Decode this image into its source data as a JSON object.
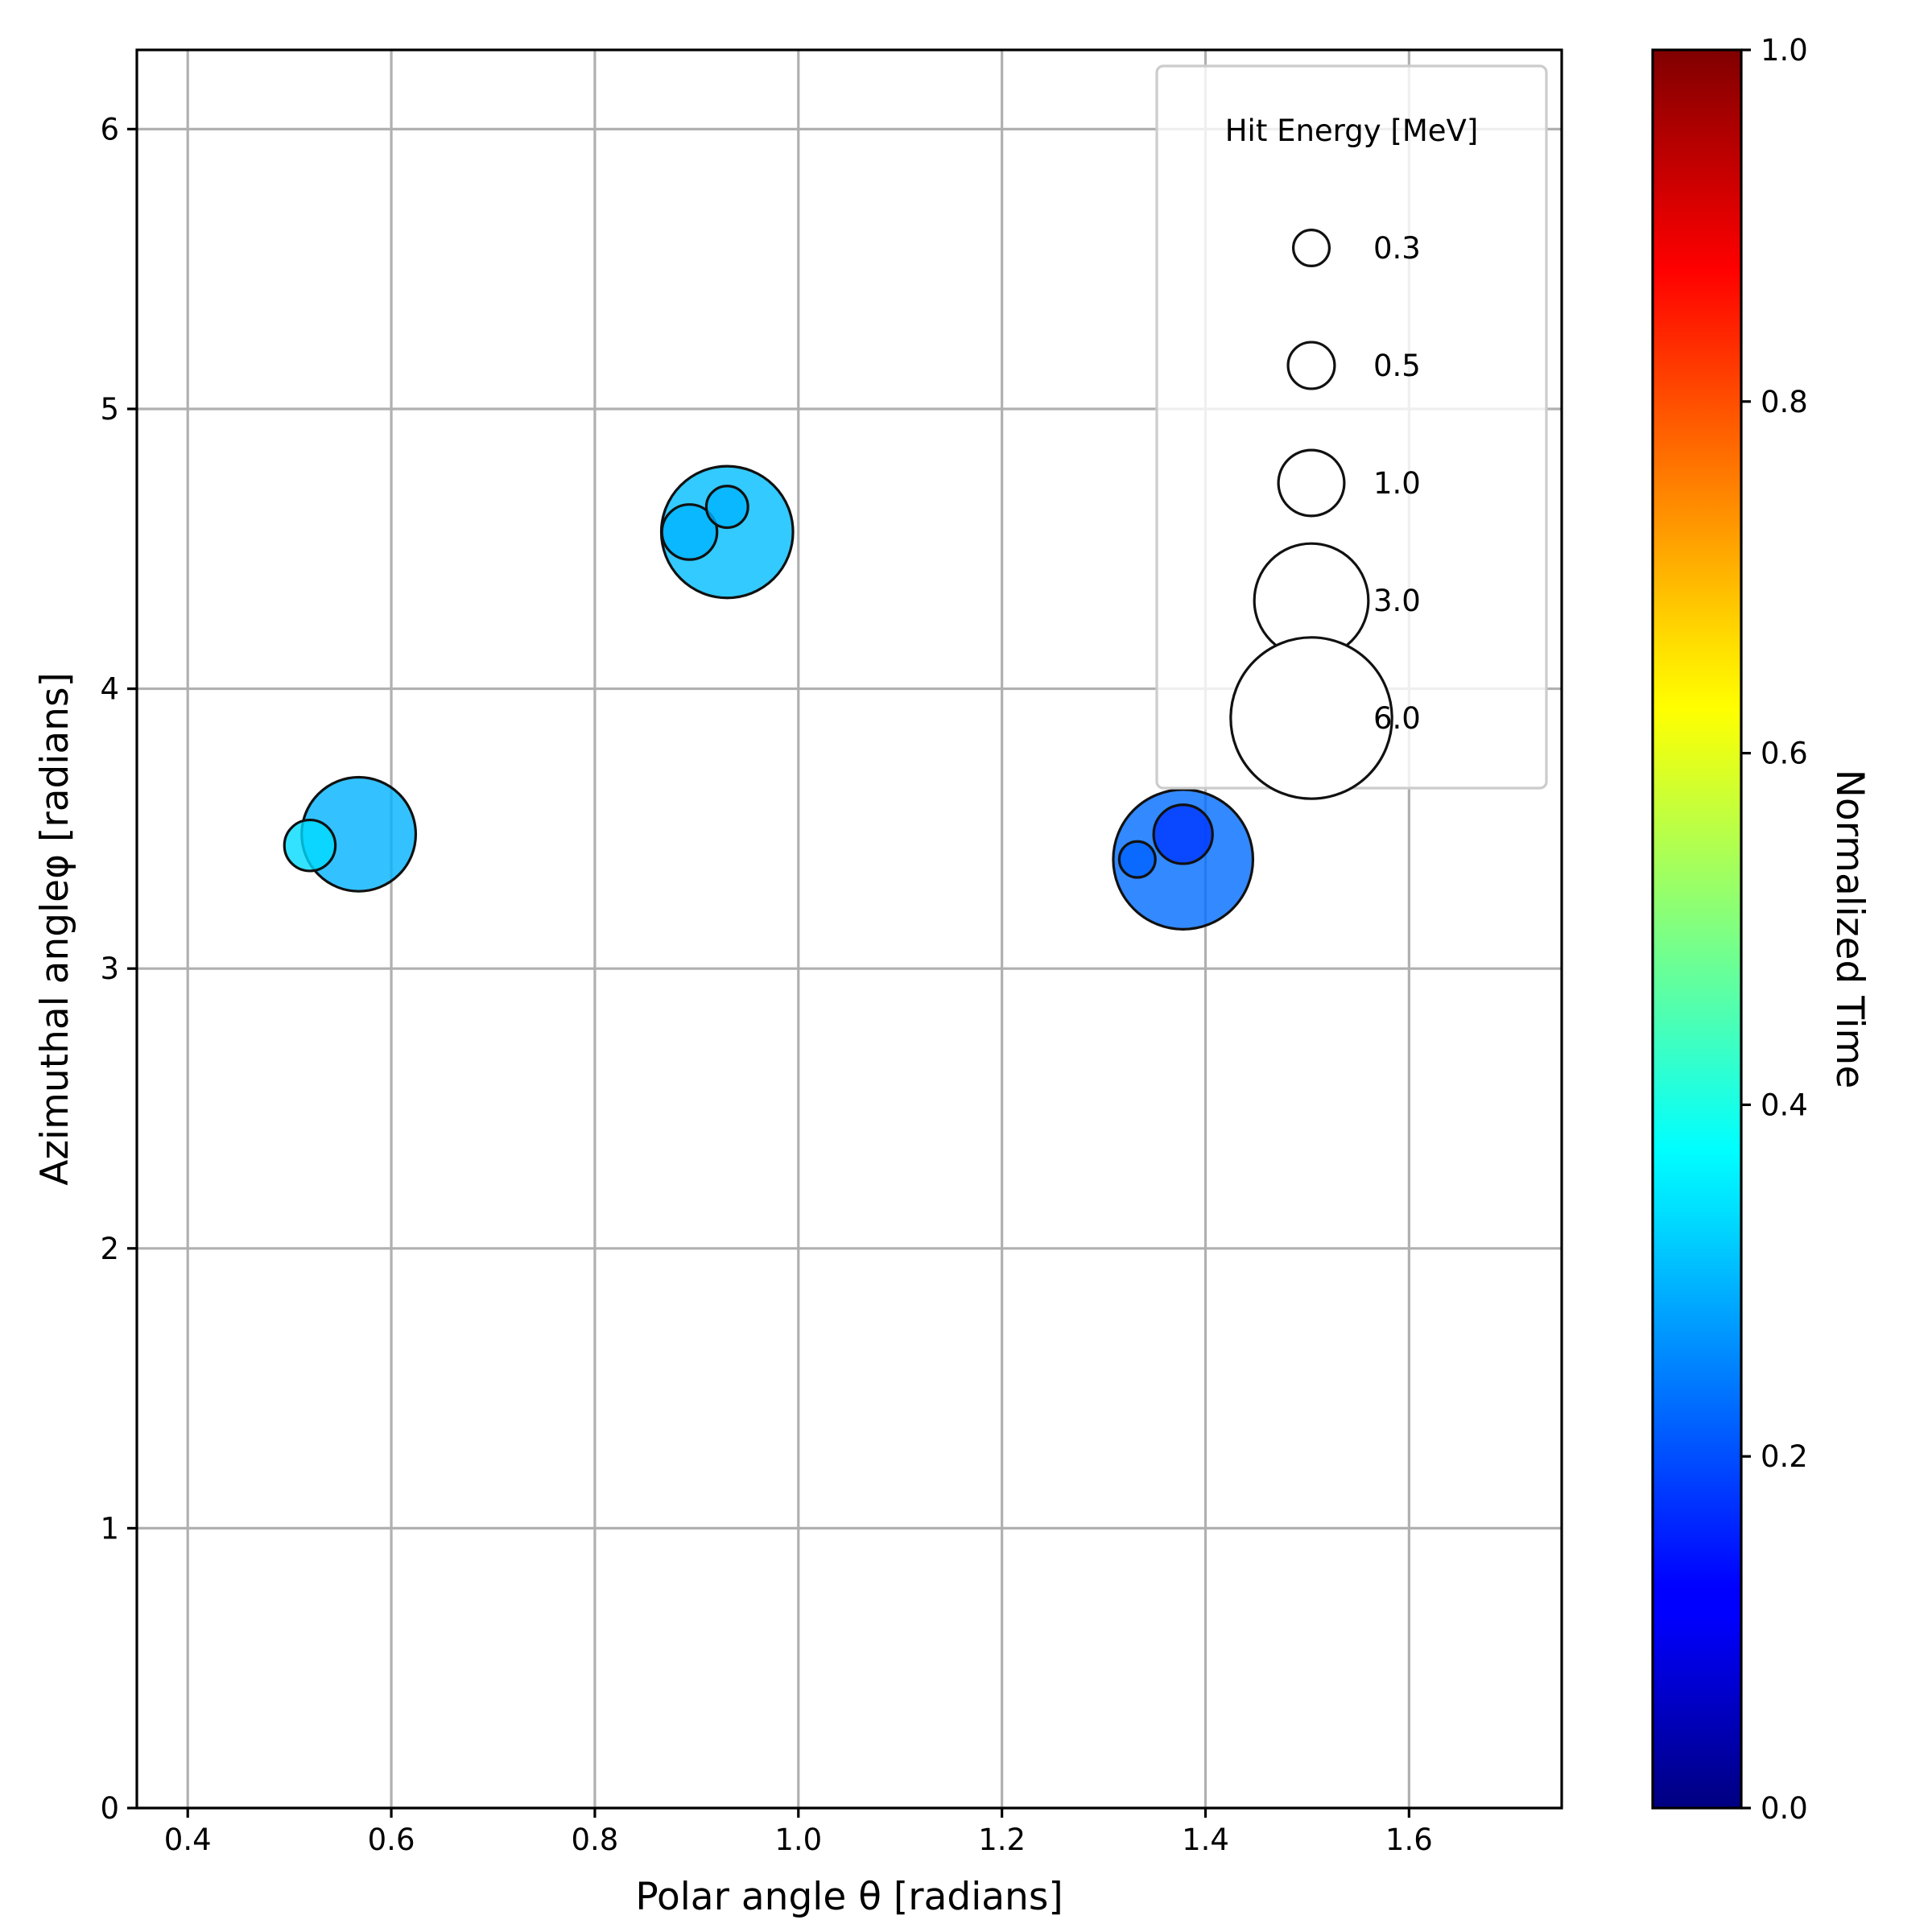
{
  "chart_data": {
    "type": "scatter",
    "xlabel": "Polar angle θ [radians]",
    "ylabel": "Azimuthal angleφ [radians]",
    "xlim": [
      0.35,
      1.75
    ],
    "ylim": [
      0,
      6.283
    ],
    "x_ticks": [
      "0.4",
      "0.6",
      "0.8",
      "1.0",
      "1.2",
      "1.4",
      "1.6"
    ],
    "y_ticks": [
      "0",
      "1",
      "2",
      "3",
      "4",
      "5",
      "6"
    ],
    "grid": true,
    "colormap": "jet",
    "colorbar": {
      "label": "Normalized Time",
      "range": [
        0,
        1
      ],
      "ticks": [
        "0.0",
        "0.2",
        "0.4",
        "0.6",
        "0.8",
        "1.0"
      ]
    },
    "points": [
      {
        "theta": 0.52,
        "phi": 3.44,
        "energy_mev": 0.6,
        "time": 0.34
      },
      {
        "theta": 0.568,
        "phi": 3.48,
        "energy_mev": 3.0,
        "time": 0.3
      },
      {
        "theta": 0.893,
        "phi": 4.56,
        "energy_mev": 0.7,
        "time": 0.3
      },
      {
        "theta": 0.93,
        "phi": 4.56,
        "energy_mev": 4.0,
        "time": 0.31
      },
      {
        "theta": 0.93,
        "phi": 4.65,
        "energy_mev": 0.4,
        "time": 0.3
      },
      {
        "theta": 1.333,
        "phi": 3.39,
        "energy_mev": 0.3,
        "time": 0.22
      },
      {
        "theta": 1.378,
        "phi": 3.39,
        "energy_mev": 4.5,
        "time": 0.23
      },
      {
        "theta": 1.378,
        "phi": 3.48,
        "energy_mev": 0.8,
        "time": 0.18
      }
    ],
    "legend": {
      "title": "Hit Energy [MeV]",
      "placement": "top-right",
      "entries": [
        {
          "label": "0.3",
          "energy_mev": 0.3
        },
        {
          "label": "0.5",
          "energy_mev": 0.5
        },
        {
          "label": "1.0",
          "energy_mev": 1.0
        },
        {
          "label": "3.0",
          "energy_mev": 3.0
        },
        {
          "label": "6.0",
          "energy_mev": 6.0
        }
      ]
    }
  }
}
